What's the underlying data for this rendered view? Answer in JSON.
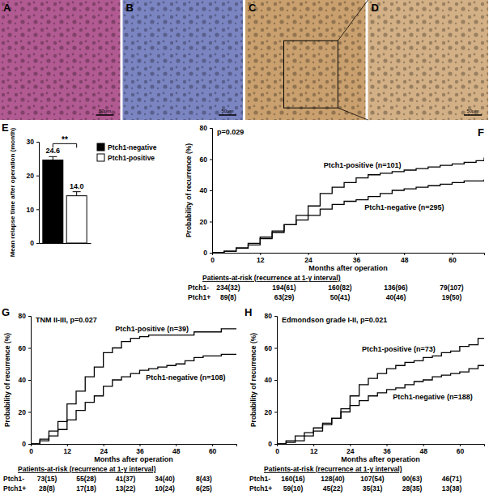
{
  "panels": [
    {
      "label": "A",
      "scale_bar": "50μm",
      "color": "#b25a92"
    },
    {
      "label": "B",
      "scale_bar": "50μm",
      "color": "#7b85c2"
    },
    {
      "label": "C",
      "color": "#c9a06e"
    },
    {
      "label": "D",
      "scale_bar": "50μm",
      "color": "#d3b086"
    }
  ],
  "chart_data": [
    {
      "panel_label": "E",
      "type": "bar",
      "categories": [
        null
      ],
      "series": [
        {
          "name": "Ptch1-negative",
          "color": "#000000",
          "values": [
            24.6
          ],
          "value_labels": [
            "24.6"
          ],
          "errors": [
            1.0
          ]
        },
        {
          "name": "Ptch1-positive",
          "color": "#ffffff",
          "values": [
            14.0
          ],
          "value_labels": [
            "14.0"
          ],
          "errors": [
            1.2
          ]
        }
      ],
      "y_label": "Mean relapse time after operation (month)",
      "ylim": [
        0,
        30
      ],
      "yticks": [
        0,
        10,
        20,
        30
      ],
      "annotations": [
        "**"
      ],
      "legend": "upper right",
      "data_labels": true,
      "tick_labels": "y"
    },
    {
      "panel_label": "F",
      "type": "line",
      "subtitle": "p=0.029",
      "x": [
        0,
        3,
        6,
        9,
        12,
        15,
        18,
        21,
        24,
        27,
        30,
        33,
        36,
        39,
        42,
        45,
        48,
        51,
        54,
        57,
        60,
        63,
        66,
        68
      ],
      "series": [
        {
          "name": "Ptch1-positive (n=101)",
          "color": "#000000",
          "line_style": "step",
          "values": [
            0,
            1,
            3,
            5,
            9,
            13,
            18,
            24,
            30,
            38,
            42,
            45,
            48,
            50,
            51,
            52,
            53,
            54,
            55,
            56,
            57,
            58,
            59,
            61
          ]
        },
        {
          "name": "Ptch1-negative (n=295)",
          "color": "#000000",
          "line_style": "step",
          "values": [
            0,
            1,
            3,
            6,
            10,
            14,
            18,
            21,
            24,
            28,
            31,
            33,
            34,
            36,
            38,
            40,
            41,
            42,
            43,
            44,
            45,
            46,
            46,
            47
          ]
        }
      ],
      "x_label": "Months after operation",
      "y_label": "Probability of recurrence (%)",
      "xlim": [
        0,
        68
      ],
      "xticks": [
        0,
        12,
        24,
        36,
        48,
        60
      ],
      "ylim": [
        0,
        80
      ],
      "yticks": [
        0,
        20,
        40,
        60,
        80
      ],
      "risk_table": {
        "title": "Patients-at-risk (recurrence at 1-y interval)",
        "rows": [
          {
            "label": "Ptch1-",
            "cells": [
              "234(32)",
              "194(61)",
              "160(82)",
              "136(96)",
              "79(107)"
            ]
          },
          {
            "label": "Ptch1+",
            "cells": [
              "89(8)",
              "63(29)",
              "50(41)",
              "40(46)",
              "19(50)"
            ]
          }
        ]
      }
    },
    {
      "panel_label": "G",
      "type": "line",
      "subtitle": "TNM II-III, p=0.027",
      "x": [
        0,
        3,
        6,
        9,
        12,
        15,
        18,
        21,
        24,
        27,
        30,
        33,
        36,
        39,
        42,
        45,
        48,
        51,
        54,
        57,
        60,
        63,
        66,
        68
      ],
      "series": [
        {
          "name": "Ptch1-positive (n=39)",
          "color": "#000000",
          "line_style": "step",
          "values": [
            0,
            3,
            8,
            14,
            25,
            33,
            42,
            48,
            57,
            60,
            64,
            66,
            67,
            68,
            68,
            68,
            68,
            68,
            70,
            70,
            70,
            72,
            72,
            72
          ]
        },
        {
          "name": "Ptch1-negative (n=108)",
          "color": "#000000",
          "line_style": "step",
          "values": [
            0,
            2,
            5,
            9,
            15,
            21,
            26,
            30,
            36,
            40,
            42,
            44,
            46,
            47,
            48,
            49,
            50,
            52,
            54,
            55,
            55,
            56,
            56,
            56
          ]
        }
      ],
      "x_label": "Months after operation",
      "y_label": "Probability of recurrence (%)",
      "xlim": [
        0,
        68
      ],
      "xticks": [
        0,
        12,
        24,
        36,
        48,
        60
      ],
      "ylim": [
        0,
        80
      ],
      "yticks": [
        0,
        20,
        40,
        60,
        80
      ],
      "risk_table": {
        "title": "Patients-at-risk (recurrence at 1-y interval)",
        "rows": [
          {
            "label": "Ptch1-",
            "cells": [
              "73(15)",
              "55(28)",
              "41(37)",
              "34(40)",
              "8(43)"
            ]
          },
          {
            "label": "Ptch1+",
            "cells": [
              "28(8)",
              "17(18)",
              "13(22)",
              "10(24)",
              "6(25)"
            ]
          }
        ]
      }
    },
    {
      "panel_label": "H",
      "type": "line",
      "subtitle": "Edmondson grade I-II, p=0.021",
      "x": [
        0,
        3,
        6,
        9,
        12,
        15,
        18,
        21,
        24,
        27,
        30,
        33,
        36,
        39,
        42,
        45,
        48,
        51,
        54,
        57,
        60,
        63,
        66,
        68
      ],
      "series": [
        {
          "name": "Ptch1-positive (n=73)",
          "color": "#000000",
          "line_style": "step",
          "values": [
            0,
            1,
            2,
            5,
            8,
            12,
            16,
            22,
            30,
            37,
            41,
            44,
            47,
            49,
            51,
            52,
            54,
            55,
            57,
            58,
            61,
            62,
            66,
            66
          ]
        },
        {
          "name": "Ptch1-negative (n=188)",
          "color": "#000000",
          "line_style": "step",
          "values": [
            0,
            2,
            5,
            7,
            10,
            13,
            16,
            20,
            24,
            27,
            30,
            32,
            34,
            35,
            37,
            39,
            40,
            42,
            43,
            44,
            45,
            47,
            49,
            49
          ]
        }
      ],
      "x_label": "Months after operation",
      "y_label": "Probability of recurrence (%)",
      "xlim": [
        0,
        68
      ],
      "xticks": [
        0,
        12,
        24,
        36,
        48,
        60
      ],
      "ylim": [
        0,
        80
      ],
      "yticks": [
        0,
        20,
        40,
        60,
        80
      ],
      "risk_table": {
        "title": "Patients-at-risk (recurrence at 1-y interval)",
        "rows": [
          {
            "label": "Ptch1-",
            "cells": [
              "160(16)",
              "128(40)",
              "107(54)",
              "90(63)",
              "46(71)"
            ]
          },
          {
            "label": "Ptch1+",
            "cells": [
              "59(10)",
              "45(22)",
              "35(31)",
              "28(35)",
              "13(38)"
            ]
          }
        ]
      }
    }
  ]
}
